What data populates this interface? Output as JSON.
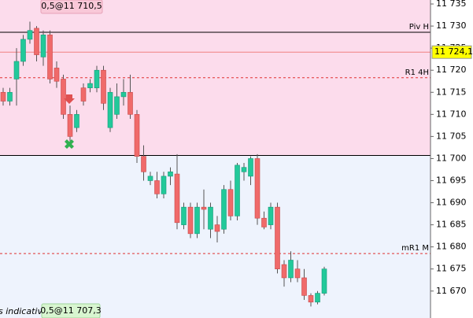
{
  "chart_data": {
    "type": "candlestick",
    "ylim": [
      11663.9,
      11735.9
    ],
    "yticks": [
      {
        "value": 11735,
        "label": "11 735"
      },
      {
        "value": 11730,
        "label": "11 730"
      },
      {
        "value": 11725,
        "label": "11 725"
      },
      {
        "value": 11720,
        "label": "11 720"
      },
      {
        "value": 11715,
        "label": "11 715"
      },
      {
        "value": 11710,
        "label": "11 710"
      },
      {
        "value": 11705,
        "label": "11 705"
      },
      {
        "value": 11700,
        "label": "11 700"
      },
      {
        "value": 11695,
        "label": "11 695"
      },
      {
        "value": 11690,
        "label": "11 690"
      },
      {
        "value": 11685,
        "label": "11 685"
      },
      {
        "value": 11680,
        "label": "11 680"
      },
      {
        "value": 11675,
        "label": "11 675"
      },
      {
        "value": 11670,
        "label": "11 670"
      }
    ],
    "up_color": "#22c99a",
    "down_color": "#f06a6a",
    "zone_colors": {
      "above": "#fcdcec",
      "below": "#eef3fd"
    },
    "levels": [
      {
        "name": "Piv H",
        "value": 11728.6,
        "color": "#000000",
        "style": "solid"
      },
      {
        "value": 11724.1,
        "label": "11 724,1",
        "color": "#f08080",
        "style": "solid",
        "tag_color": "#ffff00"
      },
      {
        "name": "R1 4H",
        "value": 11718.3,
        "color": "#e03030",
        "style": "dashed"
      },
      {
        "value": 11700.7,
        "color": "#000000",
        "style": "solid",
        "split": true
      },
      {
        "name": "mR1 M",
        "value": 11678.5,
        "color": "#e03030",
        "style": "dashed"
      }
    ],
    "annotations": [
      "0,5@11 710,5",
      "0,5@11 707,3",
      "s indicatives"
    ],
    "open": [
      11715,
      11713,
      11718,
      11722,
      11727,
      11729.5,
      11723,
      11728,
      11720.5,
      11718,
      11710,
      11707,
      11716,
      11716,
      11716,
      11720,
      11707,
      11710,
      11714,
      11715,
      11710,
      11700.5,
      11695,
      11695,
      11692,
      11696,
      11696.5,
      11685,
      11689,
      11683,
      11689,
      11684,
      11685,
      11684,
      11693,
      11687,
      11697,
      11696,
      11700,
      11686.5,
      11685,
      11689,
      11676,
      11673,
      11675,
      11673,
      11669,
      11667.5,
      11669.5
    ],
    "high": [
      11716,
      11716,
      11725,
      11728,
      11731,
      11730,
      11729,
      11729,
      11722,
      11719,
      11712,
      11711,
      11717,
      11718,
      11721,
      11721,
      11716,
      11717,
      11718,
      11719,
      11711,
      11703,
      11697,
      11697,
      11697,
      11698,
      11701,
      11690,
      11690,
      11690,
      11693,
      11690,
      11687,
      11694,
      11695,
      11699,
      11699,
      11700.5,
      11701,
      11688,
      11690,
      11690,
      11677,
      11679,
      11677,
      11675,
      11669.5,
      11670,
      11675.5
    ],
    "low": [
      11712,
      11712,
      11712,
      11721,
      11726,
      11722,
      11721,
      11717,
      11716,
      11709,
      11704,
      11706,
      11712,
      11715,
      11715,
      11711,
      11706,
      11709,
      11712,
      11709,
      11699,
      11695,
      11694,
      11691,
      11691,
      11694,
      11684,
      11684,
      11682,
      11682,
      11684,
      11682,
      11681,
      11683,
      11686,
      11686,
      11695,
      11694,
      11685,
      11684,
      11684,
      11674,
      11671,
      11672,
      11672,
      11668,
      11666.5,
      11667,
      11669
    ],
    "close": [
      11713,
      11715,
      11722,
      11727,
      11729,
      11723.5,
      11728,
      11718,
      11717.5,
      11710,
      11705,
      11710,
      11713,
      11717,
      11720,
      11712.5,
      11715,
      11714,
      11715,
      11710,
      11700.5,
      11697,
      11696,
      11692,
      11696,
      11697,
      11685.5,
      11689,
      11683,
      11689,
      11688.5,
      11689,
      11683.5,
      11693,
      11687,
      11698.5,
      11698,
      11700,
      11686.5,
      11684.5,
      11689,
      11675,
      11673,
      11677,
      11673,
      11669,
      11667.5,
      11669.5,
      11675
    ]
  }
}
